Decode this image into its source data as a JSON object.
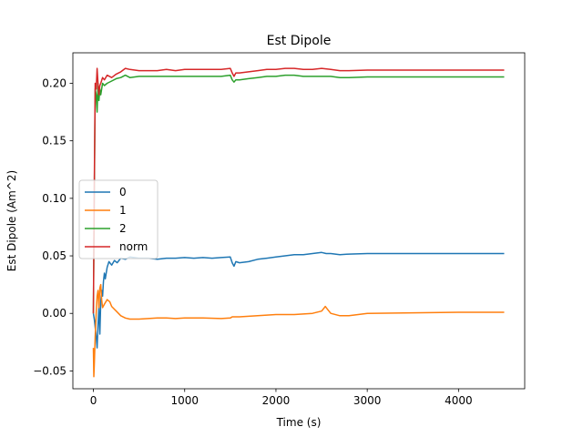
{
  "chart_data": {
    "type": "line",
    "title": "Est Dipole",
    "xlabel": "Time (s)",
    "ylabel": "Est Dipole (Am^2)",
    "xlim": [
      -225,
      4725
    ],
    "ylim": [
      -0.0655,
      0.2265
    ],
    "xticks": [
      0,
      1000,
      2000,
      3000,
      4000
    ],
    "xtick_labels": [
      "0",
      "1000",
      "2000",
      "3000",
      "4000"
    ],
    "yticks": [
      -0.05,
      0.0,
      0.05,
      0.1,
      0.15,
      0.2
    ],
    "ytick_labels": [
      "−0.05",
      "0.00",
      "0.05",
      "0.10",
      "0.15",
      "0.20"
    ],
    "grid": false,
    "legend_position": "center-left",
    "series": [
      {
        "name": "0",
        "color": "#1f77b4",
        "points": [
          [
            0,
            0.0
          ],
          [
            10,
            -0.005
          ],
          [
            20,
            -0.012
          ],
          [
            30,
            -0.02
          ],
          [
            40,
            -0.03
          ],
          [
            50,
            -0.01
          ],
          [
            60,
            0.005
          ],
          [
            70,
            -0.018
          ],
          [
            80,
            0.01
          ],
          [
            90,
            0.02
          ],
          [
            100,
            0.015
          ],
          [
            110,
            0.028
          ],
          [
            120,
            0.035
          ],
          [
            130,
            0.03
          ],
          [
            150,
            0.04
          ],
          [
            170,
            0.045
          ],
          [
            200,
            0.042
          ],
          [
            230,
            0.046
          ],
          [
            260,
            0.044
          ],
          [
            300,
            0.048
          ],
          [
            350,
            0.047
          ],
          [
            400,
            0.049
          ],
          [
            500,
            0.048
          ],
          [
            600,
            0.048
          ],
          [
            700,
            0.047
          ],
          [
            800,
            0.048
          ],
          [
            900,
            0.048
          ],
          [
            1000,
            0.0485
          ],
          [
            1100,
            0.048
          ],
          [
            1200,
            0.0485
          ],
          [
            1300,
            0.048
          ],
          [
            1400,
            0.0485
          ],
          [
            1500,
            0.049
          ],
          [
            1520,
            0.044
          ],
          [
            1540,
            0.041
          ],
          [
            1560,
            0.045
          ],
          [
            1600,
            0.044
          ],
          [
            1700,
            0.045
          ],
          [
            1800,
            0.047
          ],
          [
            1900,
            0.048
          ],
          [
            2000,
            0.049
          ],
          [
            2100,
            0.05
          ],
          [
            2200,
            0.051
          ],
          [
            2300,
            0.051
          ],
          [
            2400,
            0.052
          ],
          [
            2500,
            0.053
          ],
          [
            2550,
            0.052
          ],
          [
            2600,
            0.052
          ],
          [
            2700,
            0.051
          ],
          [
            2800,
            0.0515
          ],
          [
            3000,
            0.052
          ],
          [
            3500,
            0.052
          ],
          [
            4000,
            0.052
          ],
          [
            4500,
            0.052
          ]
        ]
      },
      {
        "name": "1",
        "color": "#ff7f0e",
        "points": [
          [
            0,
            -0.03
          ],
          [
            5,
            -0.055
          ],
          [
            10,
            -0.045
          ],
          [
            20,
            -0.02
          ],
          [
            30,
            0.0
          ],
          [
            40,
            0.015
          ],
          [
            50,
            0.02
          ],
          [
            60,
            0.005
          ],
          [
            70,
            0.022
          ],
          [
            80,
            0.025
          ],
          [
            90,
            0.012
          ],
          [
            100,
            0.005
          ],
          [
            120,
            0.008
          ],
          [
            150,
            0.012
          ],
          [
            180,
            0.01
          ],
          [
            200,
            0.006
          ],
          [
            250,
            0.002
          ],
          [
            300,
            -0.002
          ],
          [
            350,
            -0.004
          ],
          [
            400,
            -0.005
          ],
          [
            500,
            -0.005
          ],
          [
            600,
            -0.0045
          ],
          [
            700,
            -0.004
          ],
          [
            800,
            -0.004
          ],
          [
            900,
            -0.0045
          ],
          [
            1000,
            -0.004
          ],
          [
            1200,
            -0.004
          ],
          [
            1400,
            -0.0045
          ],
          [
            1500,
            -0.004
          ],
          [
            1520,
            -0.003
          ],
          [
            1600,
            -0.003
          ],
          [
            1800,
            -0.002
          ],
          [
            2000,
            -0.001
          ],
          [
            2200,
            -0.001
          ],
          [
            2400,
            0.0
          ],
          [
            2500,
            0.002
          ],
          [
            2540,
            0.006
          ],
          [
            2560,
            0.004
          ],
          [
            2600,
            0.0
          ],
          [
            2700,
            -0.002
          ],
          [
            2800,
            -0.002
          ],
          [
            3000,
            0.0
          ],
          [
            3500,
            0.0005
          ],
          [
            4000,
            0.001
          ],
          [
            4500,
            0.001
          ]
        ]
      },
      {
        "name": "2",
        "color": "#2ca02c",
        "points": [
          [
            0,
            0.0
          ],
          [
            10,
            0.1
          ],
          [
            20,
            0.195
          ],
          [
            30,
            0.19
          ],
          [
            40,
            0.175
          ],
          [
            50,
            0.2
          ],
          [
            60,
            0.185
          ],
          [
            70,
            0.195
          ],
          [
            80,
            0.19
          ],
          [
            100,
            0.2
          ],
          [
            120,
            0.198
          ],
          [
            150,
            0.2
          ],
          [
            200,
            0.202
          ],
          [
            250,
            0.204
          ],
          [
            300,
            0.205
          ],
          [
            350,
            0.207
          ],
          [
            400,
            0.205
          ],
          [
            500,
            0.206
          ],
          [
            600,
            0.206
          ],
          [
            700,
            0.206
          ],
          [
            800,
            0.206
          ],
          [
            900,
            0.206
          ],
          [
            1000,
            0.206
          ],
          [
            1200,
            0.206
          ],
          [
            1400,
            0.206
          ],
          [
            1500,
            0.207
          ],
          [
            1520,
            0.203
          ],
          [
            1540,
            0.201
          ],
          [
            1560,
            0.203
          ],
          [
            1600,
            0.203
          ],
          [
            1700,
            0.204
          ],
          [
            1800,
            0.205
          ],
          [
            1900,
            0.206
          ],
          [
            2000,
            0.206
          ],
          [
            2100,
            0.207
          ],
          [
            2200,
            0.207
          ],
          [
            2300,
            0.206
          ],
          [
            2400,
            0.206
          ],
          [
            2500,
            0.206
          ],
          [
            2600,
            0.206
          ],
          [
            2700,
            0.205
          ],
          [
            2800,
            0.205
          ],
          [
            3000,
            0.2055
          ],
          [
            3500,
            0.2055
          ],
          [
            4000,
            0.2055
          ],
          [
            4500,
            0.2055
          ]
        ]
      },
      {
        "name": "norm",
        "color": "#d62728",
        "points": [
          [
            0,
            0.0
          ],
          [
            10,
            0.11
          ],
          [
            20,
            0.2
          ],
          [
            30,
            0.195
          ],
          [
            40,
            0.213
          ],
          [
            50,
            0.2
          ],
          [
            60,
            0.19
          ],
          [
            70,
            0.198
          ],
          [
            80,
            0.2
          ],
          [
            100,
            0.205
          ],
          [
            120,
            0.203
          ],
          [
            150,
            0.207
          ],
          [
            200,
            0.205
          ],
          [
            250,
            0.208
          ],
          [
            300,
            0.21
          ],
          [
            350,
            0.213
          ],
          [
            400,
            0.212
          ],
          [
            500,
            0.211
          ],
          [
            600,
            0.211
          ],
          [
            700,
            0.211
          ],
          [
            800,
            0.212
          ],
          [
            900,
            0.211
          ],
          [
            1000,
            0.212
          ],
          [
            1200,
            0.212
          ],
          [
            1400,
            0.212
          ],
          [
            1500,
            0.213
          ],
          [
            1520,
            0.209
          ],
          [
            1540,
            0.206
          ],
          [
            1560,
            0.209
          ],
          [
            1600,
            0.209
          ],
          [
            1700,
            0.21
          ],
          [
            1800,
            0.211
          ],
          [
            1900,
            0.212
          ],
          [
            2000,
            0.212
          ],
          [
            2100,
            0.213
          ],
          [
            2200,
            0.213
          ],
          [
            2300,
            0.212
          ],
          [
            2400,
            0.212
          ],
          [
            2500,
            0.213
          ],
          [
            2600,
            0.212
          ],
          [
            2700,
            0.211
          ],
          [
            2800,
            0.211
          ],
          [
            3000,
            0.2115
          ],
          [
            3500,
            0.2115
          ],
          [
            4000,
            0.2115
          ],
          [
            4500,
            0.2115
          ]
        ]
      }
    ]
  }
}
